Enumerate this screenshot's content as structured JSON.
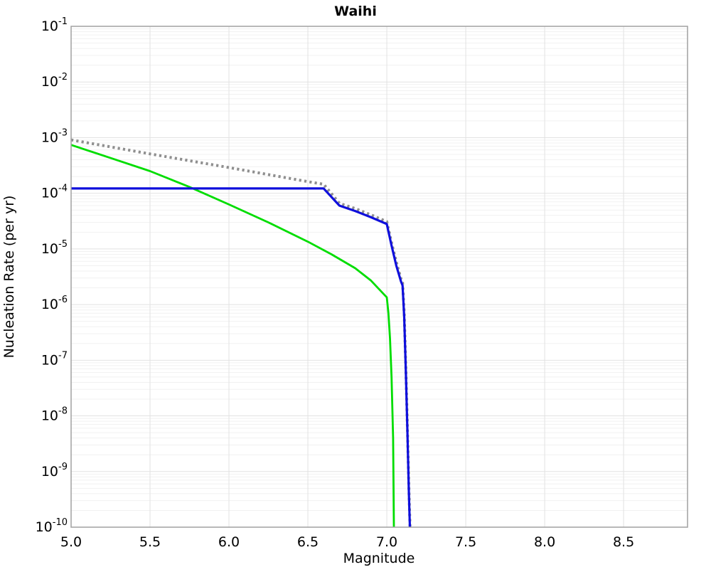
{
  "title": "Waihi",
  "axes": {
    "x": {
      "label": "Magnitude",
      "min": 5.0,
      "max": 8.905,
      "major_ticks": [
        5.0,
        5.5,
        6.0,
        6.5,
        7.0,
        7.5,
        8.0,
        8.5
      ],
      "tick_labels": [
        "5.0",
        "5.5",
        "6.0",
        "6.5",
        "7.0",
        "7.5",
        "8.0",
        "8.5"
      ]
    },
    "y": {
      "label": "Nucleation Rate (per yr)",
      "scale": "log",
      "min": 1e-10,
      "max": 0.1,
      "tick_base": "10",
      "tick_exponents": [
        -1,
        -2,
        -3,
        -4,
        -5,
        -6,
        -7,
        -8,
        -9,
        -10
      ]
    }
  },
  "colors": {
    "background": "#ffffff",
    "frame": "#a0a0a0",
    "grid_major": "#e2e2e2",
    "grid_minor": "#f1f1f1",
    "text": "#000000",
    "gray_dotted_series": "#8f8f8f",
    "green_series": "#00dd00",
    "blue_series": "#0f0fdc"
  },
  "chart_data": {
    "type": "line",
    "title": "Waihi",
    "xlabel": "Magnitude",
    "ylabel": "Nucleation Rate (per yr)",
    "xlim": [
      5.0,
      8.905
    ],
    "ylim": [
      1e-10,
      0.1
    ],
    "yscale": "log",
    "grid": true,
    "legend_position": "none",
    "series": [
      {
        "name": "gray-dotted-curve",
        "style": "dotted",
        "color": "#8f8f8f",
        "width": 4,
        "points": [
          [
            5.0,
            0.00091
          ],
          [
            5.5,
            0.00051
          ],
          [
            6.0,
            0.00029
          ],
          [
            6.5,
            0.000162
          ],
          [
            6.6,
            0.000145
          ],
          [
            6.7,
            6.6e-05
          ],
          [
            6.8,
            5.3e-05
          ],
          [
            6.9,
            4.1e-05
          ],
          [
            7.0,
            3.1e-05
          ],
          [
            7.03,
            1.3e-05
          ],
          [
            7.06,
            5.8e-06
          ],
          [
            7.09,
            2.9e-06
          ],
          [
            7.1,
            2.5e-06
          ],
          [
            7.11,
            7e-07
          ],
          [
            7.12,
            8e-08
          ],
          [
            7.13,
            7e-09
          ],
          [
            7.14,
            5e-10
          ],
          [
            7.147,
            1e-10
          ]
        ]
      },
      {
        "name": "green-solid-curve",
        "style": "solid",
        "color": "#00dd00",
        "width": 2.8,
        "points": [
          [
            5.0,
            0.00074
          ],
          [
            5.25,
            0.00043
          ],
          [
            5.5,
            0.00025
          ],
          [
            5.75,
            0.00013
          ],
          [
            6.0,
            6.3e-05
          ],
          [
            6.25,
            3e-05
          ],
          [
            6.5,
            1.35e-05
          ],
          [
            6.65,
            8e-06
          ],
          [
            6.8,
            4.5e-06
          ],
          [
            6.9,
            2.7e-06
          ],
          [
            7.0,
            1.35e-06
          ],
          [
            7.01,
            7e-07
          ],
          [
            7.02,
            2.5e-07
          ],
          [
            7.03,
            5e-08
          ],
          [
            7.04,
            4e-09
          ],
          [
            7.045,
            1e-10
          ]
        ]
      },
      {
        "name": "blue-solid-curve",
        "style": "solid",
        "color": "#0f0fdc",
        "width": 3.2,
        "points": [
          [
            5.0,
            0.000122
          ],
          [
            6.6,
            0.000122
          ],
          [
            6.7,
            6e-05
          ],
          [
            6.8,
            4.8e-05
          ],
          [
            6.9,
            3.7e-05
          ],
          [
            7.0,
            2.8e-05
          ],
          [
            7.03,
            1.15e-05
          ],
          [
            7.06,
            5e-06
          ],
          [
            7.09,
            2.6e-06
          ],
          [
            7.1,
            2.2e-06
          ],
          [
            7.11,
            6e-07
          ],
          [
            7.12,
            7e-08
          ],
          [
            7.13,
            6e-09
          ],
          [
            7.14,
            4e-10
          ],
          [
            7.146,
            1e-10
          ]
        ]
      }
    ]
  }
}
